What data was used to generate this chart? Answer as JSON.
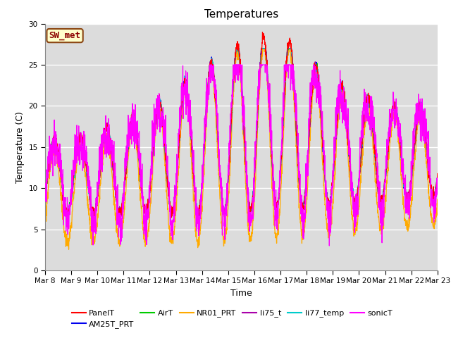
{
  "title": "Temperatures",
  "xlabel": "Time",
  "ylabel": "Temperature (C)",
  "ylim": [
    0,
    30
  ],
  "background_color": "#dcdcdc",
  "annotation_text": "SW_met",
  "series_colors": {
    "PanelT": "#ff0000",
    "AM25T_PRT": "#0000ee",
    "AirT": "#00cc00",
    "NR01_PRT": "#ffaa00",
    "li75_t": "#aa00aa",
    "li77_temp": "#00cccc",
    "sonicT": "#ff00ff"
  },
  "tick_labels": [
    "Mar 8",
    "Mar 9",
    "Mar 10",
    "Mar 11",
    "Mar 12",
    "Mar 13",
    "Mar 14",
    "Mar 15",
    "Mar 16",
    "Mar 17",
    "Mar 18",
    "Mar 19",
    "Mar 20",
    "Mar 21",
    "Mar 22",
    "Mar 23"
  ],
  "yticks": [
    0,
    5,
    10,
    15,
    20,
    25,
    30
  ]
}
